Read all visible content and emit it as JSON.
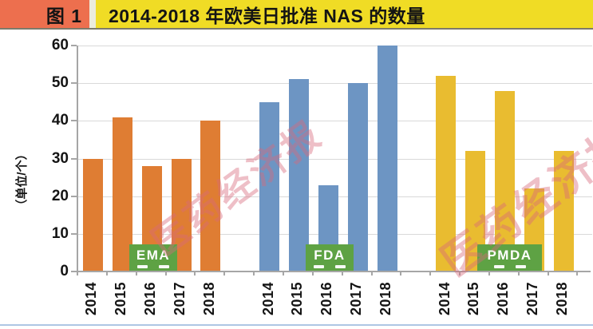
{
  "header": {
    "figure_label": "图 1",
    "title": "2014-2018 年欧美日批准 NAS 的数量"
  },
  "watermark": {
    "text": "医药经济报"
  },
  "colors": {
    "header_label_bg": "#ED6F4E",
    "header_title_bg": "#F0DC25",
    "badge_bg": "#5EA244",
    "badge_text": "#FFFFFF",
    "axis": "#A6A6A6",
    "gridline": "#D9D9D9",
    "bottom_divider": "#AEC6E4",
    "watermark": "#D9697B"
  },
  "chart_data": {
    "type": "bar",
    "title": "2014-2018 年欧美日批准 NAS 的数量",
    "xlabel": "",
    "ylabel": "（单位/个）",
    "ylim": [
      0,
      60
    ],
    "yticks": [
      0,
      10,
      20,
      30,
      40,
      50,
      60
    ],
    "grid": true,
    "legend_position": "group-labels-inside-plot-bottom",
    "categories": [
      "2014",
      "2015",
      "2016",
      "2017",
      "2018"
    ],
    "series": [
      {
        "name": "EMA",
        "color": "#DF7D33",
        "values": [
          30,
          41,
          28,
          30,
          40
        ]
      },
      {
        "name": "FDA",
        "color": "#6D95C3",
        "values": [
          45,
          51,
          23,
          50,
          60
        ]
      },
      {
        "name": "PMDA",
        "color": "#E9BC30",
        "values": [
          52,
          32,
          48,
          22,
          32
        ]
      }
    ]
  }
}
